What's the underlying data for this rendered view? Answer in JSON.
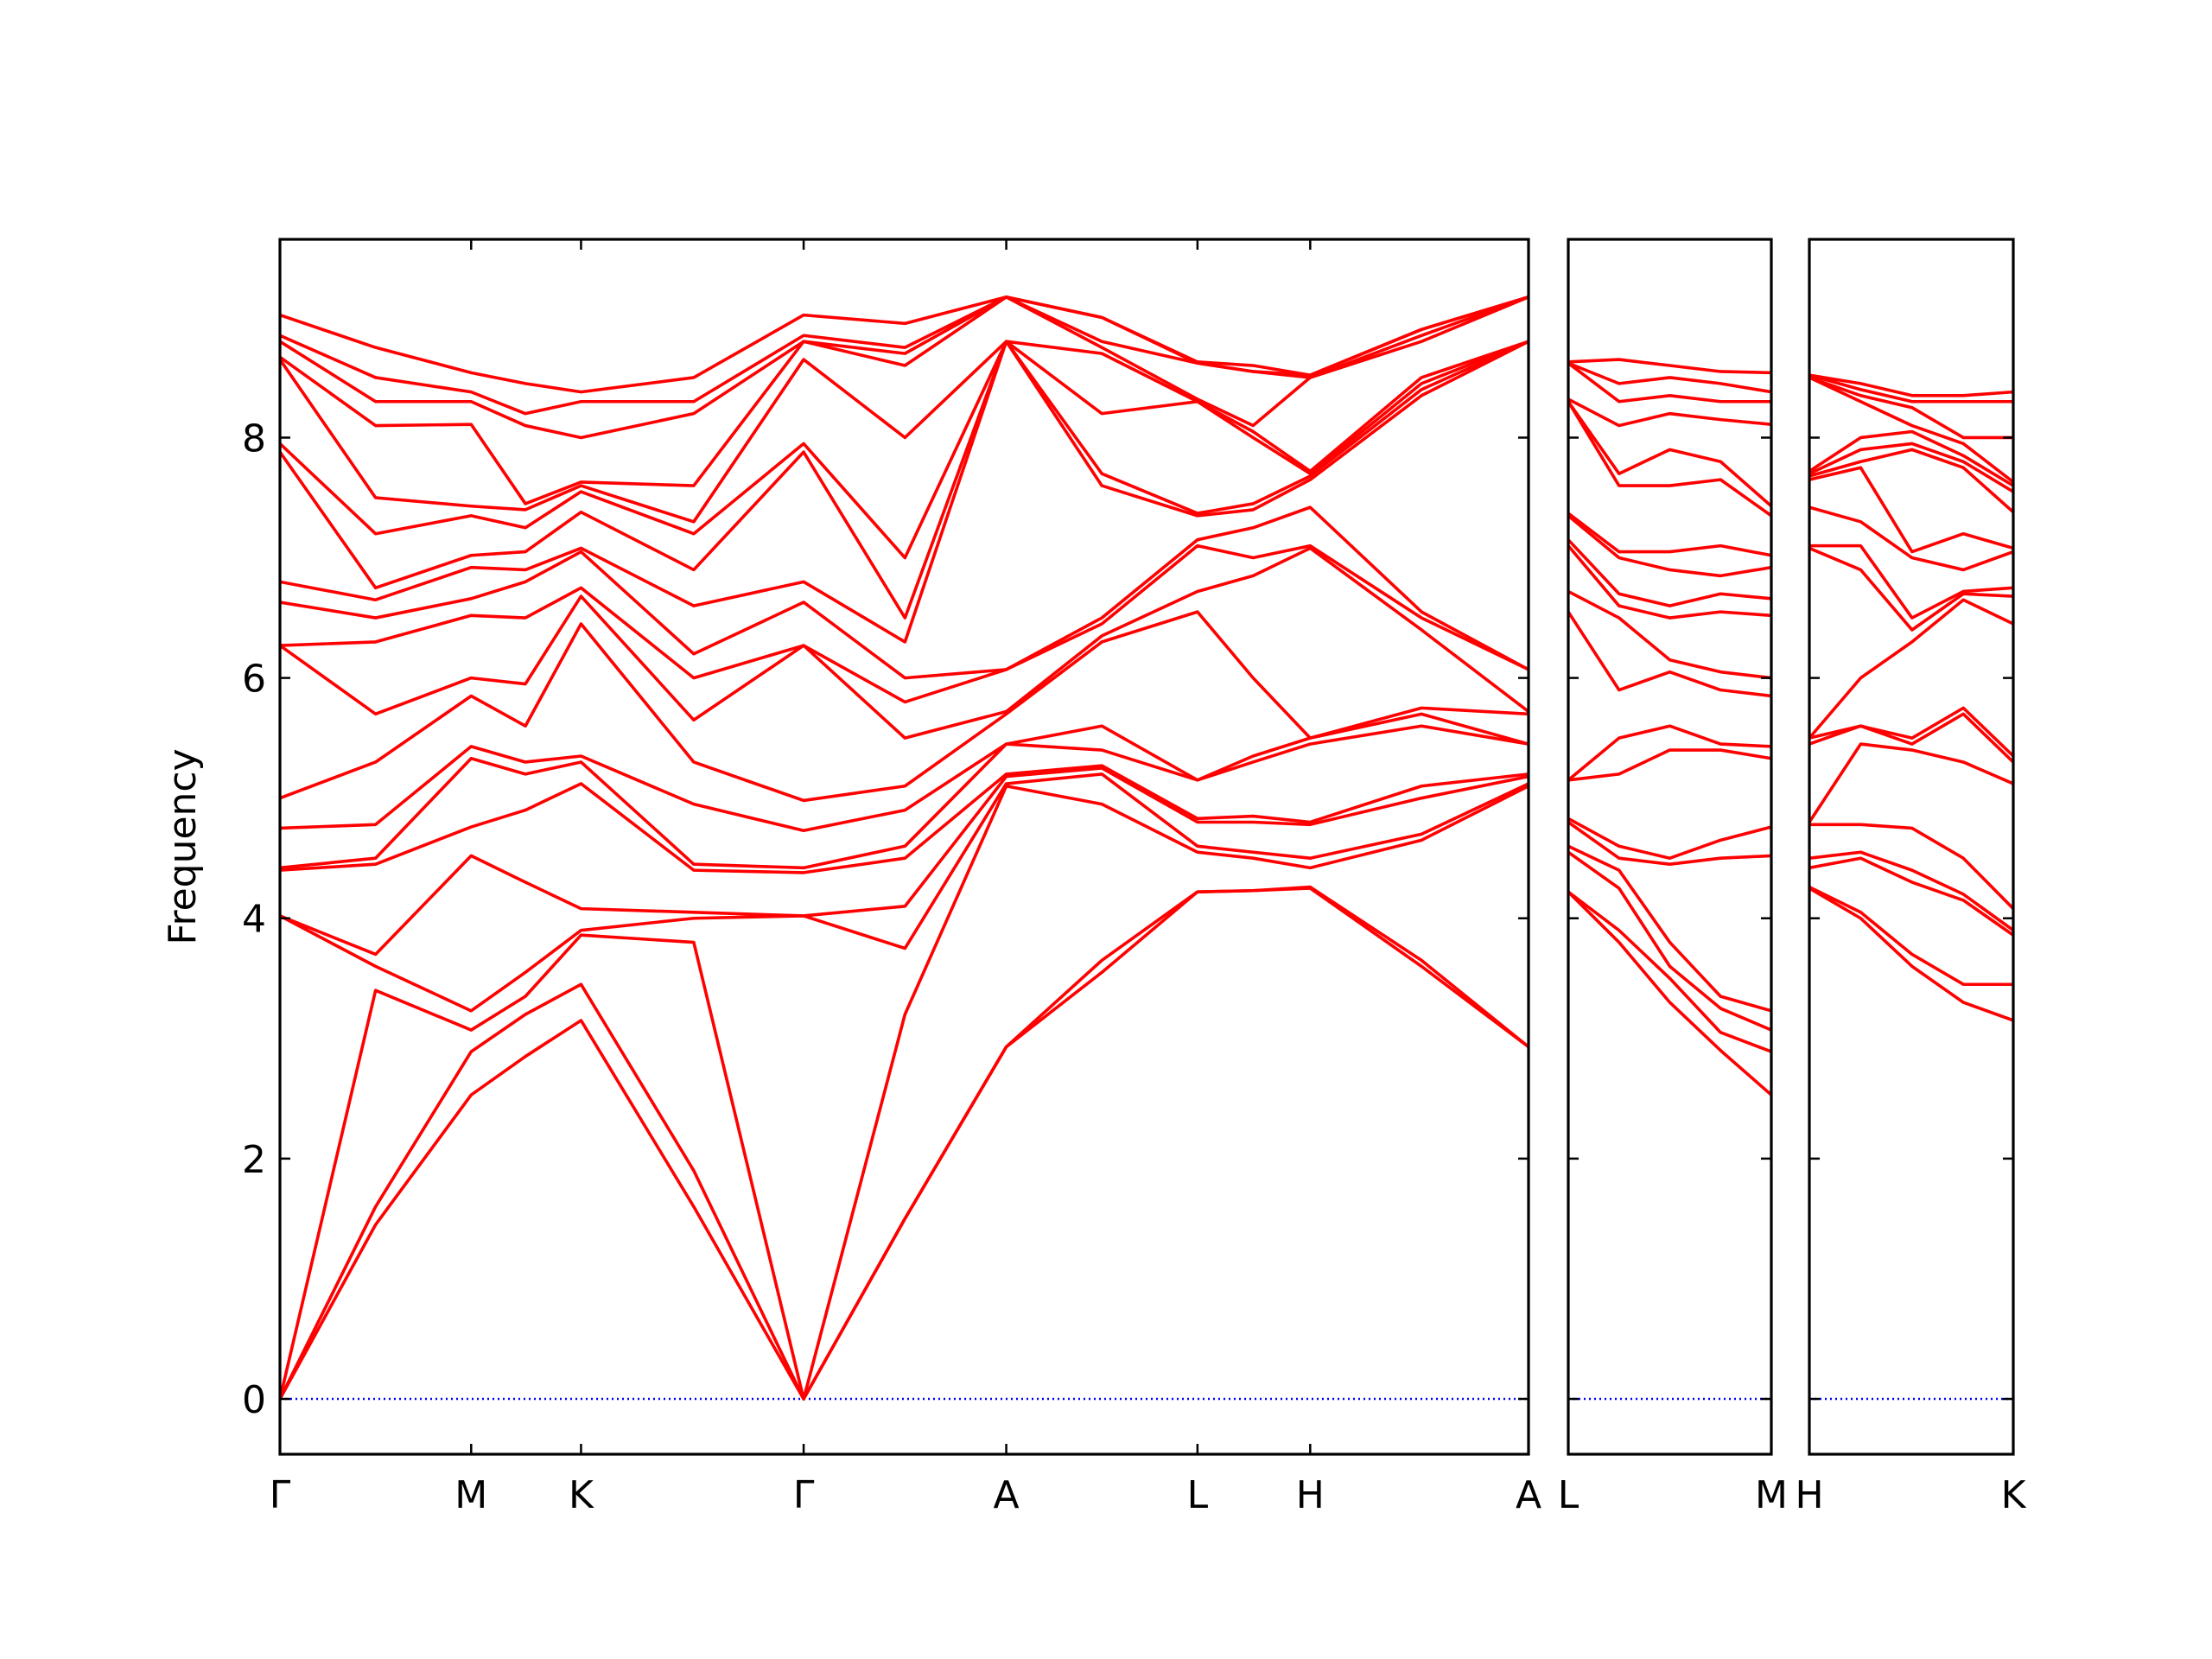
{
  "chart_data": [
    {
      "type": "line",
      "ylabel": "Frequency",
      "ylim": [
        -0.46,
        9.65
      ],
      "yticks": [
        0,
        2,
        4,
        6,
        8
      ],
      "show_ytick_labels": true,
      "xlim": [
        0,
        8.75
      ],
      "xticks": [
        {
          "value": 0,
          "label": "Γ"
        },
        {
          "value": 1.34,
          "label": "M"
        },
        {
          "value": 2.11,
          "label": "K"
        },
        {
          "value": 3.67,
          "label": "Γ"
        },
        {
          "value": 5.09,
          "label": "A"
        },
        {
          "value": 6.43,
          "label": "L"
        },
        {
          "value": 7.22,
          "label": "H"
        },
        {
          "value": 8.75,
          "label": "A"
        }
      ],
      "x": [
        0,
        0.67,
        1.34,
        1.72,
        2.11,
        2.9,
        3.67,
        4.38,
        5.09,
        5.76,
        6.43,
        6.82,
        7.22,
        8.0,
        8.75
      ],
      "series": [
        {
          "color": "#0000ff",
          "dash": "dotted",
          "values": [
            0,
            0,
            0,
            0,
            0,
            0,
            0,
            0,
            0,
            0,
            0,
            0,
            0,
            0,
            0
          ]
        },
        {
          "color": "#ff0000",
          "values": [
            0,
            1.45,
            2.53,
            2.85,
            3.15,
            1.6,
            0,
            1.5,
            2.93,
            3.55,
            4.22,
            4.23,
            4.25,
            3.6,
            2.93
          ]
        },
        {
          "color": "#ff0000",
          "values": [
            0,
            1.6,
            2.89,
            3.2,
            3.45,
            1.9,
            0,
            1.5,
            2.93,
            3.65,
            4.22,
            4.23,
            4.26,
            3.65,
            2.93
          ]
        },
        {
          "color": "#ff0000",
          "values": [
            0,
            3.4,
            3.07,
            3.35,
            3.86,
            3.8,
            0,
            3.2,
            5.1,
            4.95,
            4.55,
            4.5,
            4.42,
            4.65,
            5.1
          ]
        },
        {
          "color": "#ff0000",
          "values": [
            4.02,
            3.6,
            3.23,
            3.55,
            3.9,
            4.0,
            4.02,
            3.75,
            5.12,
            5.2,
            4.6,
            4.55,
            4.5,
            4.7,
            5.12
          ]
        },
        {
          "color": "#ff0000",
          "values": [
            4.02,
            3.7,
            4.52,
            4.3,
            4.08,
            4.05,
            4.02,
            4.1,
            5.18,
            5.25,
            4.8,
            4.8,
            4.78,
            5.0,
            5.18
          ]
        },
        {
          "color": "#ff0000",
          "values": [
            4.4,
            4.45,
            4.76,
            4.9,
            5.12,
            4.4,
            4.38,
            4.5,
            5.2,
            5.27,
            4.83,
            4.85,
            4.8,
            5.1,
            5.2
          ]
        },
        {
          "color": "#ff0000",
          "values": [
            4.42,
            4.5,
            5.33,
            5.2,
            5.3,
            4.45,
            4.42,
            4.6,
            5.45,
            5.4,
            5.15,
            5.3,
            5.45,
            5.6,
            5.45
          ]
        },
        {
          "color": "#ff0000",
          "values": [
            4.75,
            4.78,
            5.43,
            5.3,
            5.35,
            4.95,
            4.73,
            4.9,
            5.45,
            5.6,
            5.15,
            5.35,
            5.5,
            5.7,
            5.45
          ]
        },
        {
          "color": "#ff0000",
          "values": [
            5.0,
            5.3,
            5.85,
            5.6,
            6.45,
            5.3,
            4.98,
            5.1,
            5.7,
            6.3,
            6.55,
            6.0,
            5.5,
            5.75,
            5.7
          ]
        },
        {
          "color": "#ff0000",
          "values": [
            6.27,
            5.7,
            6.0,
            5.95,
            6.68,
            5.65,
            6.27,
            5.5,
            5.72,
            6.35,
            6.72,
            6.85,
            7.08,
            6.4,
            5.72
          ]
        },
        {
          "color": "#ff0000",
          "values": [
            6.27,
            6.3,
            6.52,
            6.5,
            6.75,
            6.0,
            6.27,
            5.8,
            6.07,
            6.45,
            7.1,
            7.0,
            7.1,
            6.5,
            6.07
          ]
        },
        {
          "color": "#ff0000",
          "values": [
            6.63,
            6.5,
            6.66,
            6.8,
            7.05,
            6.2,
            6.63,
            6.0,
            6.07,
            6.5,
            7.15,
            7.25,
            7.42,
            6.55,
            6.07
          ]
        },
        {
          "color": "#ff0000",
          "values": [
            6.8,
            6.65,
            6.92,
            6.9,
            7.08,
            6.6,
            6.8,
            6.3,
            8.8,
            7.6,
            7.35,
            7.4,
            7.65,
            8.35,
            8.8
          ]
        },
        {
          "color": "#ff0000",
          "values": [
            7.88,
            6.75,
            7.02,
            7.05,
            7.38,
            6.9,
            7.88,
            6.5,
            8.8,
            7.7,
            7.37,
            7.45,
            7.68,
            8.4,
            8.8
          ]
        },
        {
          "color": "#ff0000",
          "values": [
            7.95,
            7.2,
            7.35,
            7.25,
            7.55,
            7.2,
            7.95,
            7.0,
            8.8,
            8.2,
            8.3,
            8.0,
            7.7,
            8.45,
            8.8
          ]
        },
        {
          "color": "#ff0000",
          "values": [
            8.65,
            7.5,
            7.43,
            7.4,
            7.6,
            7.3,
            8.65,
            8.0,
            8.8,
            8.7,
            8.3,
            8.05,
            7.72,
            8.5,
            8.8
          ]
        },
        {
          "color": "#ff0000",
          "values": [
            8.67,
            8.1,
            8.11,
            7.45,
            7.63,
            7.6,
            8.8,
            8.6,
            9.17,
            8.75,
            8.32,
            8.1,
            8.5,
            8.8,
            9.17
          ]
        },
        {
          "color": "#ff0000",
          "values": [
            8.8,
            8.3,
            8.3,
            8.1,
            8.0,
            8.2,
            8.8,
            8.7,
            9.17,
            8.8,
            8.62,
            8.55,
            8.5,
            8.85,
            9.17
          ]
        },
        {
          "color": "#ff0000",
          "values": [
            8.85,
            8.5,
            8.38,
            8.2,
            8.3,
            8.3,
            8.85,
            8.75,
            9.17,
            9.0,
            8.62,
            8.55,
            8.52,
            8.9,
            9.17
          ]
        },
        {
          "color": "#ff0000",
          "values": [
            9.02,
            8.75,
            8.54,
            8.45,
            8.38,
            8.5,
            9.02,
            8.95,
            9.17,
            9.0,
            8.63,
            8.6,
            8.52,
            8.9,
            9.17
          ]
        }
      ]
    },
    {
      "type": "line",
      "ylim": [
        -0.46,
        9.65
      ],
      "yticks": [
        0,
        2,
        4,
        6,
        8
      ],
      "show_ytick_labels": false,
      "xlim": [
        0,
        1.42
      ],
      "xticks": [
        {
          "value": 0,
          "label": "L"
        },
        {
          "value": 1.42,
          "label": "M"
        }
      ],
      "x": [
        0,
        0.355,
        0.71,
        1.065,
        1.42
      ],
      "series": [
        {
          "color": "#0000ff",
          "dash": "dotted",
          "values": [
            0,
            0,
            0,
            0,
            0
          ]
        },
        {
          "color": "#ff0000",
          "values": [
            4.22,
            3.8,
            3.3,
            2.9,
            2.53
          ]
        },
        {
          "color": "#ff0000",
          "values": [
            4.22,
            3.9,
            3.5,
            3.05,
            2.89
          ]
        },
        {
          "color": "#ff0000",
          "values": [
            4.55,
            4.25,
            3.6,
            3.25,
            3.07
          ]
        },
        {
          "color": "#ff0000",
          "values": [
            4.6,
            4.4,
            3.8,
            3.35,
            3.23
          ]
        },
        {
          "color": "#ff0000",
          "values": [
            4.8,
            4.5,
            4.45,
            4.5,
            4.52
          ]
        },
        {
          "color": "#ff0000",
          "values": [
            4.83,
            4.6,
            4.5,
            4.65,
            4.76
          ]
        },
        {
          "color": "#ff0000",
          "values": [
            5.15,
            5.2,
            5.4,
            5.4,
            5.33
          ]
        },
        {
          "color": "#ff0000",
          "values": [
            5.15,
            5.5,
            5.6,
            5.45,
            5.43
          ]
        },
        {
          "color": "#ff0000",
          "values": [
            6.55,
            5.9,
            6.05,
            5.9,
            5.85
          ]
        },
        {
          "color": "#ff0000",
          "values": [
            6.72,
            6.5,
            6.15,
            6.05,
            6.0
          ]
        },
        {
          "color": "#ff0000",
          "values": [
            7.1,
            6.6,
            6.5,
            6.55,
            6.52
          ]
        },
        {
          "color": "#ff0000",
          "values": [
            7.15,
            6.7,
            6.6,
            6.7,
            6.66
          ]
        },
        {
          "color": "#ff0000",
          "values": [
            7.35,
            7.0,
            6.9,
            6.85,
            6.92
          ]
        },
        {
          "color": "#ff0000",
          "values": [
            7.37,
            7.05,
            7.05,
            7.1,
            7.02
          ]
        },
        {
          "color": "#ff0000",
          "values": [
            8.3,
            7.6,
            7.6,
            7.65,
            7.35
          ]
        },
        {
          "color": "#ff0000",
          "values": [
            8.3,
            7.7,
            7.9,
            7.8,
            7.43
          ]
        },
        {
          "color": "#ff0000",
          "values": [
            8.32,
            8.1,
            8.2,
            8.15,
            8.11
          ]
        },
        {
          "color": "#ff0000",
          "values": [
            8.62,
            8.3,
            8.35,
            8.3,
            8.3
          ]
        },
        {
          "color": "#ff0000",
          "values": [
            8.62,
            8.45,
            8.5,
            8.45,
            8.38
          ]
        },
        {
          "color": "#ff0000",
          "values": [
            8.63,
            8.65,
            8.6,
            8.55,
            8.54
          ]
        }
      ]
    },
    {
      "type": "line",
      "ylim": [
        -0.46,
        9.65
      ],
      "yticks": [
        0,
        2,
        4,
        6,
        8
      ],
      "show_ytick_labels": false,
      "xlim": [
        0,
        1.43
      ],
      "xticks": [
        {
          "value": 0,
          "label": "H"
        },
        {
          "value": 1.43,
          "label": "K"
        }
      ],
      "x": [
        0,
        0.36,
        0.72,
        1.08,
        1.43
      ],
      "series": [
        {
          "color": "#0000ff",
          "dash": "dotted",
          "values": [
            0,
            0,
            0,
            0,
            0
          ]
        },
        {
          "color": "#ff0000",
          "values": [
            4.25,
            4.0,
            3.6,
            3.3,
            3.15
          ]
        },
        {
          "color": "#ff0000",
          "values": [
            4.26,
            4.05,
            3.7,
            3.45,
            3.45
          ]
        },
        {
          "color": "#ff0000",
          "values": [
            4.42,
            4.5,
            4.3,
            4.15,
            3.86
          ]
        },
        {
          "color": "#ff0000",
          "values": [
            4.5,
            4.55,
            4.4,
            4.2,
            3.9
          ]
        },
        {
          "color": "#ff0000",
          "values": [
            4.78,
            4.78,
            4.75,
            4.5,
            4.08
          ]
        },
        {
          "color": "#ff0000",
          "values": [
            4.8,
            5.45,
            5.4,
            5.3,
            5.12
          ]
        },
        {
          "color": "#ff0000",
          "values": [
            5.45,
            5.6,
            5.45,
            5.7,
            5.3
          ]
        },
        {
          "color": "#ff0000",
          "values": [
            5.5,
            5.6,
            5.5,
            5.75,
            5.35
          ]
        },
        {
          "color": "#ff0000",
          "values": [
            5.5,
            6.0,
            6.3,
            6.65,
            6.45
          ]
        },
        {
          "color": "#ff0000",
          "values": [
            7.08,
            6.9,
            6.4,
            6.7,
            6.68
          ]
        },
        {
          "color": "#ff0000",
          "values": [
            7.1,
            7.1,
            6.5,
            6.72,
            6.75
          ]
        },
        {
          "color": "#ff0000",
          "values": [
            7.42,
            7.3,
            7.0,
            6.9,
            7.05
          ]
        },
        {
          "color": "#ff0000",
          "values": [
            7.65,
            7.75,
            7.05,
            7.2,
            7.08
          ]
        },
        {
          "color": "#ff0000",
          "values": [
            7.68,
            7.8,
            7.9,
            7.75,
            7.38
          ]
        },
        {
          "color": "#ff0000",
          "values": [
            7.7,
            7.9,
            7.95,
            7.8,
            7.55
          ]
        },
        {
          "color": "#ff0000",
          "values": [
            7.72,
            8.0,
            8.05,
            7.85,
            7.6
          ]
        },
        {
          "color": "#ff0000",
          "values": [
            8.5,
            8.3,
            8.1,
            7.95,
            7.63
          ]
        },
        {
          "color": "#ff0000",
          "values": [
            8.5,
            8.35,
            8.25,
            8.0,
            8.0
          ]
        },
        {
          "color": "#ff0000",
          "values": [
            8.52,
            8.4,
            8.3,
            8.3,
            8.3
          ]
        },
        {
          "color": "#ff0000",
          "values": [
            8.52,
            8.45,
            8.35,
            8.35,
            8.38
          ]
        }
      ]
    }
  ]
}
